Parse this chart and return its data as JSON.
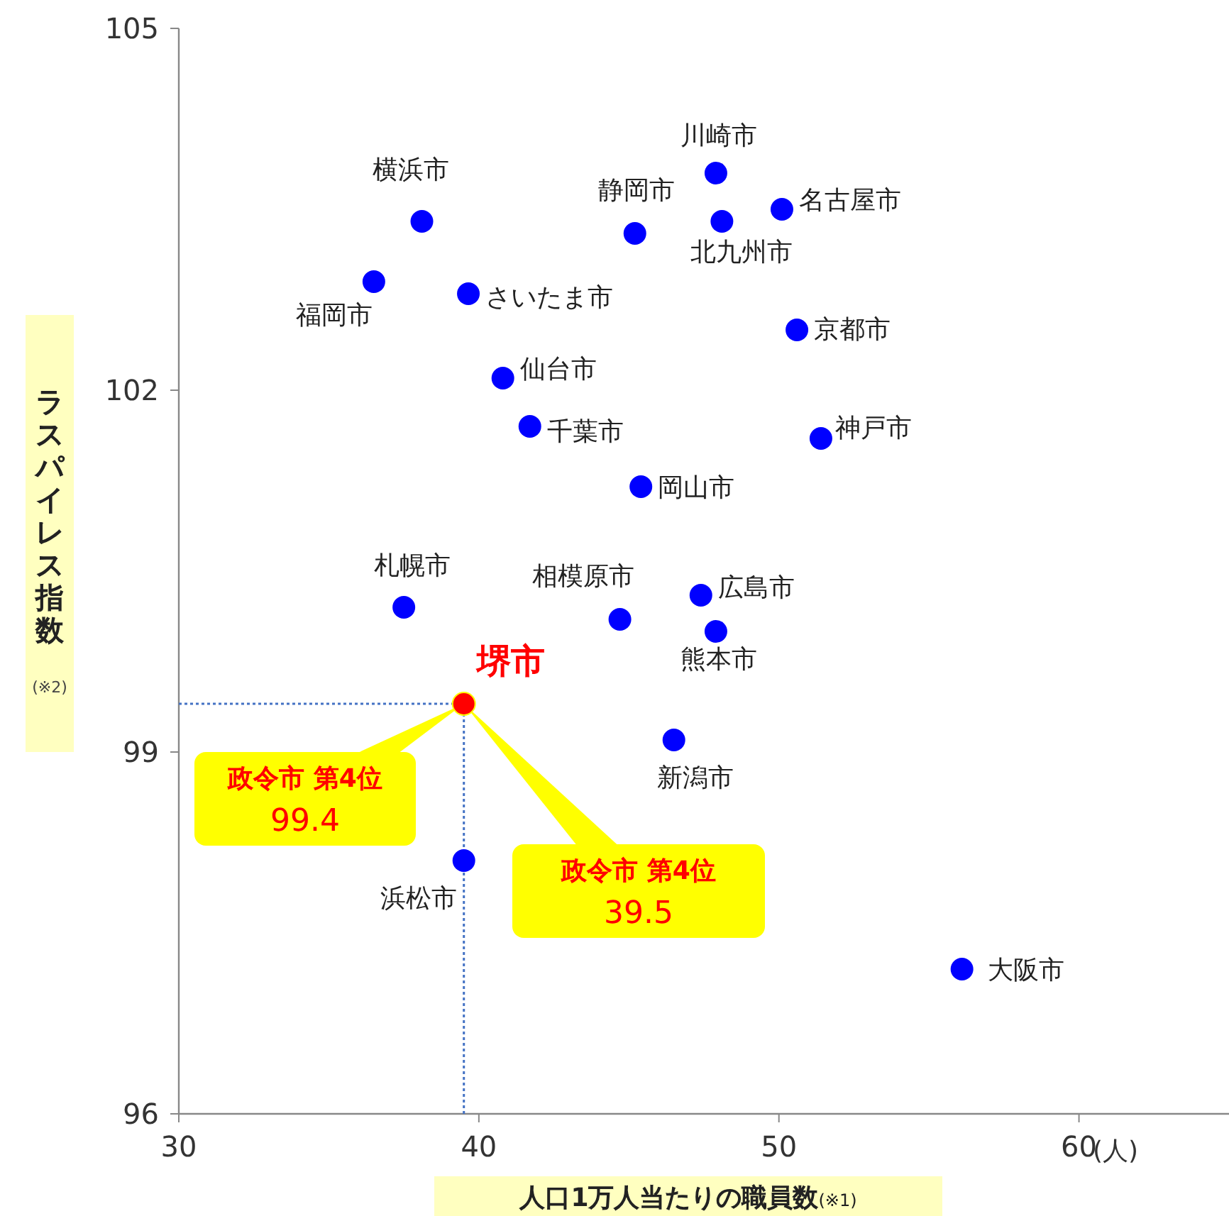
{
  "chart_data": {
    "type": "scatter",
    "xlabel": "人口1万人当たりの職員数(※1)",
    "ylabel": "ラスパイレス指数(※2)",
    "xlim": [
      30,
      65
    ],
    "ylim": [
      96,
      105
    ],
    "xticks": [
      30,
      40,
      50,
      60
    ],
    "yticks": [
      96,
      99,
      102,
      105
    ],
    "marker": "circle",
    "grid": false,
    "legend": false,
    "series": [
      {
        "name": "横浜市",
        "color": "#0000ff",
        "x": [
          38.1
        ],
        "values": [
          103.4
        ]
      },
      {
        "name": "福岡市",
        "color": "#0000ff",
        "x": [
          36.5
        ],
        "values": [
          102.9
        ]
      },
      {
        "name": "さいたま市",
        "color": "#0000ff",
        "x": [
          39.65
        ],
        "values": [
          102.8
        ]
      },
      {
        "name": "川崎市",
        "color": "#0000ff",
        "x": [
          47.9
        ],
        "values": [
          103.8
        ]
      },
      {
        "name": "静岡市",
        "color": "#0000ff",
        "x": [
          45.2
        ],
        "values": [
          103.3
        ]
      },
      {
        "name": "北九州市",
        "color": "#0000ff",
        "x": [
          48.1
        ],
        "values": [
          103.4
        ]
      },
      {
        "name": "名古屋市",
        "color": "#0000ff",
        "x": [
          50.1
        ],
        "values": [
          103.5
        ]
      },
      {
        "name": "京都市",
        "color": "#0000ff",
        "x": [
          50.6
        ],
        "values": [
          102.5
        ]
      },
      {
        "name": "仙台市",
        "color": "#0000ff",
        "x": [
          40.8
        ],
        "values": [
          102.1
        ]
      },
      {
        "name": "千葉市",
        "color": "#0000ff",
        "x": [
          41.7
        ],
        "values": [
          101.7
        ]
      },
      {
        "name": "神戸市",
        "color": "#0000ff",
        "x": [
          51.4
        ],
        "values": [
          101.6
        ]
      },
      {
        "name": "岡山市",
        "color": "#0000ff",
        "x": [
          45.4
        ],
        "values": [
          101.2
        ]
      },
      {
        "name": "札幌市",
        "color": "#0000ff",
        "x": [
          37.5
        ],
        "values": [
          100.2
        ]
      },
      {
        "name": "相模原市",
        "color": "#0000ff",
        "x": [
          44.7
        ],
        "values": [
          100.1
        ]
      },
      {
        "name": "広島市",
        "color": "#0000ff",
        "x": [
          47.4
        ],
        "values": [
          100.3
        ]
      },
      {
        "name": "熊本市",
        "color": "#0000ff",
        "x": [
          47.9
        ],
        "values": [
          100.0
        ]
      },
      {
        "name": "堺市",
        "color": "#ff0000",
        "x": [
          39.5
        ],
        "values": [
          99.4
        ]
      },
      {
        "name": "新潟市",
        "color": "#0000ff",
        "x": [
          46.5
        ],
        "values": [
          99.1
        ]
      },
      {
        "name": "浜松市",
        "color": "#0000ff",
        "x": [
          39.5
        ],
        "values": [
          98.1
        ]
      },
      {
        "name": "大阪市",
        "color": "#0000ff",
        "x": [
          56.1
        ],
        "values": [
          97.2
        ]
      }
    ],
    "ref_lines": [
      {
        "axis": "y",
        "value": 99.4,
        "color": "#4472c4",
        "line_style": "dotted"
      },
      {
        "axis": "x",
        "value": 39.5,
        "color": "#4472c4",
        "line_style": "dotted"
      }
    ],
    "annotations": [
      "政令市 第4位\n99.4",
      "政令市 第4位\n39.5",
      "(人)"
    ]
  }
}
